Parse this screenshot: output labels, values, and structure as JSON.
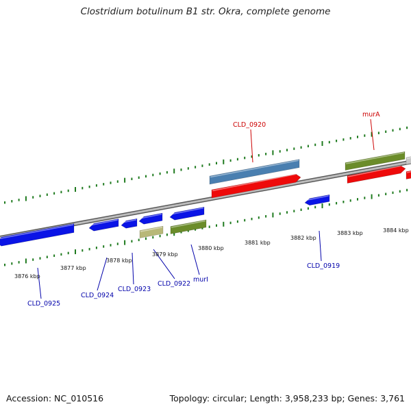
{
  "title": "Clostridium botulinum B1 str. Okra, complete genome",
  "footer": {
    "accession": "Accession: NC_010516",
    "summary": "Topology: circular; Length: 3,958,233 bp; Genes: 3,761"
  },
  "colors": {
    "backbone": "#8a8a8a",
    "tick": "#1e7a1e",
    "forward_label": "#cc0000",
    "reverse_label": "#0000aa",
    "blue": "#0a14e6",
    "red": "#ee0a0a",
    "steelblue": "#4a7fb0",
    "olive": "#6b8c2a",
    "khaki": "#b8b878",
    "grey": "#c8c8c8"
  },
  "scale_labels": [
    "3876 kbp",
    "3877 kbp",
    "3878 kbp",
    "3879 kbp",
    "3880 kbp",
    "3881 kbp",
    "3882 kbp",
    "3883 kbp",
    "3884 kbp"
  ],
  "gene_labels": {
    "CLD_0920": "CLD_0920",
    "murA": "murA",
    "CLD_0925": "CLD_0925",
    "CLD_0924": "CLD_0924",
    "CLD_0923": "CLD_0923",
    "CLD_0922": "CLD_0922",
    "murI": "murI",
    "CLD_0919": "CLD_0919"
  }
}
